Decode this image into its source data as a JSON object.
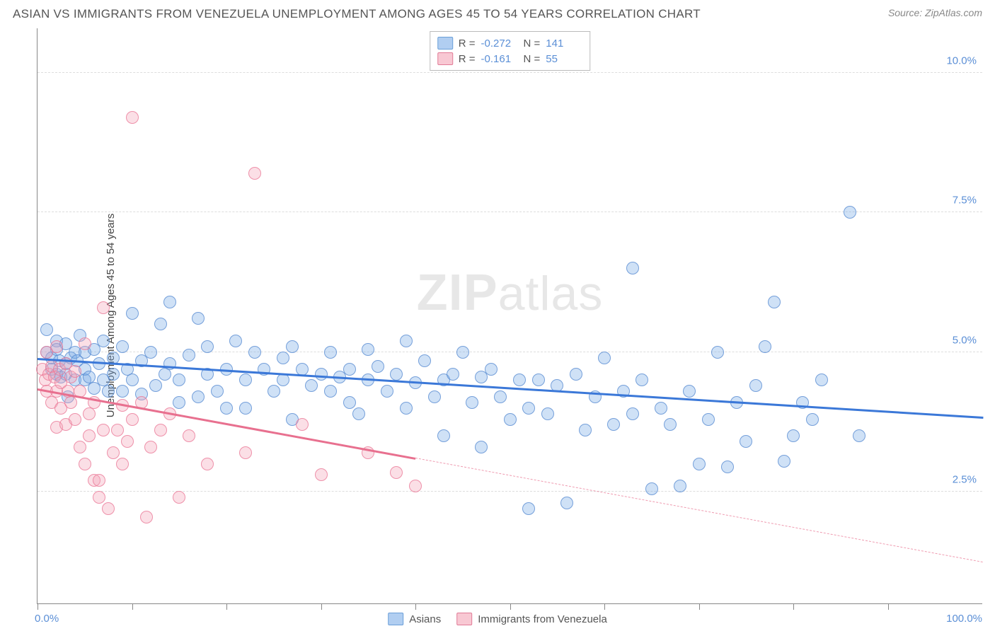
{
  "title": "ASIAN VS IMMIGRANTS FROM VENEZUELA UNEMPLOYMENT AMONG AGES 45 TO 54 YEARS CORRELATION CHART",
  "source": "Source: ZipAtlas.com",
  "watermark_bold": "ZIP",
  "watermark_light": "atlas",
  "y_axis_label": "Unemployment Among Ages 45 to 54 years",
  "chart": {
    "type": "scatter",
    "xlim": [
      0,
      100
    ],
    "ylim": [
      0.5,
      10.8
    ],
    "x_axis_min_label": "0.0%",
    "x_axis_max_label": "100.0%",
    "x_ticks": [
      0,
      10,
      20,
      30,
      40,
      50,
      60,
      70,
      80,
      90
    ],
    "y_gridlines": [
      2.5,
      5.0,
      7.5,
      10.0
    ],
    "y_tick_labels": [
      "2.5%",
      "5.0%",
      "7.5%",
      "10.0%"
    ],
    "background_color": "#ffffff",
    "grid_color": "#dddddd",
    "marker_radius": 9,
    "series": [
      {
        "name": "Asians",
        "color_fill": "rgba(118,168,228,0.35)",
        "color_stroke": "rgba(86,138,208,0.75)",
        "class": "blue",
        "R": "-0.272",
        "N": "141",
        "trend": {
          "x1": 0,
          "y1": 4.9,
          "x2": 100,
          "y2": 3.85,
          "solid_until_x": 100
        },
        "points": [
          [
            1,
            5.4
          ],
          [
            1,
            5.0
          ],
          [
            1.5,
            4.7
          ],
          [
            1.5,
            4.9
          ],
          [
            2,
            5.2
          ],
          [
            2,
            4.6
          ],
          [
            2,
            5.05
          ],
          [
            2.3,
            4.85
          ],
          [
            2.5,
            4.55
          ],
          [
            3,
            5.15
          ],
          [
            3,
            4.8
          ],
          [
            3,
            4.6
          ],
          [
            3.2,
            4.2
          ],
          [
            3.5,
            4.9
          ],
          [
            4,
            5.0
          ],
          [
            4,
            4.5
          ],
          [
            4.2,
            4.85
          ],
          [
            4.5,
            5.3
          ],
          [
            5,
            4.7
          ],
          [
            5,
            4.5
          ],
          [
            5,
            5.0
          ],
          [
            5.5,
            4.55
          ],
          [
            6,
            5.05
          ],
          [
            6,
            4.35
          ],
          [
            6.5,
            4.8
          ],
          [
            7,
            5.2
          ],
          [
            7,
            4.5
          ],
          [
            7.5,
            4.3
          ],
          [
            8,
            4.9
          ],
          [
            8,
            4.6
          ],
          [
            9,
            5.1
          ],
          [
            9,
            4.3
          ],
          [
            9.5,
            4.7
          ],
          [
            10,
            5.7
          ],
          [
            10,
            4.5
          ],
          [
            11,
            4.85
          ],
          [
            11,
            4.25
          ],
          [
            12,
            5.0
          ],
          [
            12.5,
            4.4
          ],
          [
            13,
            5.5
          ],
          [
            13.5,
            4.6
          ],
          [
            14,
            5.9
          ],
          [
            14,
            4.8
          ],
          [
            15,
            4.5
          ],
          [
            15,
            4.1
          ],
          [
            16,
            4.95
          ],
          [
            17,
            5.6
          ],
          [
            17,
            4.2
          ],
          [
            18,
            4.6
          ],
          [
            18,
            5.1
          ],
          [
            19,
            4.3
          ],
          [
            20,
            4.0
          ],
          [
            20,
            4.7
          ],
          [
            21,
            5.2
          ],
          [
            22,
            4.5
          ],
          [
            22,
            4.0
          ],
          [
            23,
            5.0
          ],
          [
            24,
            4.7
          ],
          [
            25,
            4.3
          ],
          [
            26,
            4.9
          ],
          [
            26,
            4.5
          ],
          [
            27,
            5.1
          ],
          [
            27,
            3.8
          ],
          [
            28,
            4.7
          ],
          [
            29,
            4.4
          ],
          [
            30,
            4.6
          ],
          [
            31,
            5.0
          ],
          [
            31,
            4.3
          ],
          [
            32,
            4.55
          ],
          [
            33,
            4.1
          ],
          [
            33,
            4.7
          ],
          [
            34,
            3.9
          ],
          [
            35,
            4.5
          ],
          [
            35,
            5.05
          ],
          [
            36,
            4.75
          ],
          [
            37,
            4.3
          ],
          [
            38,
            4.6
          ],
          [
            39,
            5.2
          ],
          [
            39,
            4.0
          ],
          [
            40,
            4.45
          ],
          [
            41,
            4.85
          ],
          [
            42,
            4.2
          ],
          [
            43,
            4.5
          ],
          [
            43,
            3.5
          ],
          [
            44,
            4.6
          ],
          [
            45,
            5.0
          ],
          [
            46,
            4.1
          ],
          [
            47,
            3.3
          ],
          [
            47,
            4.55
          ],
          [
            48,
            4.7
          ],
          [
            49,
            4.2
          ],
          [
            50,
            3.8
          ],
          [
            51,
            4.5
          ],
          [
            52,
            4.0
          ],
          [
            52,
            2.2
          ],
          [
            53,
            4.5
          ],
          [
            54,
            3.9
          ],
          [
            55,
            4.4
          ],
          [
            56,
            2.3
          ],
          [
            57,
            4.6
          ],
          [
            58,
            3.6
          ],
          [
            59,
            4.2
          ],
          [
            60,
            4.9
          ],
          [
            61,
            3.7
          ],
          [
            62,
            4.3
          ],
          [
            63,
            3.9
          ],
          [
            63,
            6.5
          ],
          [
            64,
            4.5
          ],
          [
            65,
            2.55
          ],
          [
            66,
            4.0
          ],
          [
            67,
            3.7
          ],
          [
            68,
            2.6
          ],
          [
            69,
            4.3
          ],
          [
            70,
            3.0
          ],
          [
            71,
            3.8
          ],
          [
            72,
            5.0
          ],
          [
            73,
            2.95
          ],
          [
            74,
            4.1
          ],
          [
            75,
            3.4
          ],
          [
            76,
            4.4
          ],
          [
            77,
            5.1
          ],
          [
            78,
            5.9
          ],
          [
            79,
            3.05
          ],
          [
            80,
            3.5
          ],
          [
            81,
            4.1
          ],
          [
            82,
            3.8
          ],
          [
            83,
            4.5
          ],
          [
            86,
            7.5
          ],
          [
            87,
            3.5
          ]
        ]
      },
      {
        "name": "Immigrants from Venezuela",
        "color_fill": "rgba(244,164,184,0.35)",
        "color_stroke": "rgba(233,118,148,0.75)",
        "class": "pink",
        "R": "-0.161",
        "N": "55",
        "trend": {
          "x1": 0,
          "y1": 4.35,
          "x2": 100,
          "y2": 1.25,
          "solid_until_x": 40
        },
        "points": [
          [
            0.5,
            4.7
          ],
          [
            0.8,
            4.5
          ],
          [
            1,
            5.0
          ],
          [
            1,
            4.3
          ],
          [
            1.2,
            4.6
          ],
          [
            1.5,
            4.75
          ],
          [
            1.5,
            4.1
          ],
          [
            1.8,
            4.55
          ],
          [
            2,
            5.1
          ],
          [
            2,
            4.3
          ],
          [
            2,
            3.65
          ],
          [
            2.3,
            4.7
          ],
          [
            2.5,
            4.45
          ],
          [
            2.5,
            4.0
          ],
          [
            3,
            4.8
          ],
          [
            3,
            3.7
          ],
          [
            3.2,
            4.3
          ],
          [
            3.5,
            4.1
          ],
          [
            3.5,
            4.55
          ],
          [
            4,
            4.65
          ],
          [
            4,
            3.8
          ],
          [
            4.5,
            3.3
          ],
          [
            4.5,
            4.3
          ],
          [
            5,
            3.0
          ],
          [
            5,
            5.15
          ],
          [
            5.5,
            3.5
          ],
          [
            5.5,
            3.9
          ],
          [
            6,
            4.1
          ],
          [
            6,
            2.7
          ],
          [
            6.5,
            2.7
          ],
          [
            6.5,
            2.4
          ],
          [
            7,
            3.6
          ],
          [
            7,
            5.8
          ],
          [
            7.5,
            2.2
          ],
          [
            8,
            3.2
          ],
          [
            8.5,
            3.6
          ],
          [
            9,
            4.05
          ],
          [
            9,
            3.0
          ],
          [
            9.5,
            3.4
          ],
          [
            10,
            9.2
          ],
          [
            10,
            3.8
          ],
          [
            11,
            4.1
          ],
          [
            11.5,
            2.05
          ],
          [
            12,
            3.3
          ],
          [
            13,
            3.6
          ],
          [
            14,
            3.9
          ],
          [
            15,
            2.4
          ],
          [
            16,
            3.5
          ],
          [
            18,
            3.0
          ],
          [
            22,
            3.2
          ],
          [
            23,
            8.2
          ],
          [
            28,
            3.7
          ],
          [
            30,
            2.8
          ],
          [
            35,
            3.2
          ],
          [
            38,
            2.85
          ],
          [
            40,
            2.6
          ]
        ]
      }
    ]
  },
  "legend_top": {
    "rows": [
      {
        "class": "blue",
        "R": "-0.272",
        "N": "141"
      },
      {
        "class": "pink",
        "R": "-0.161",
        "N": "55"
      }
    ],
    "R_label": "R =",
    "N_label": "N ="
  },
  "legend_bottom": [
    {
      "class": "blue",
      "label": "Asians"
    },
    {
      "class": "pink",
      "label": "Immigrants from Venezuela"
    }
  ]
}
